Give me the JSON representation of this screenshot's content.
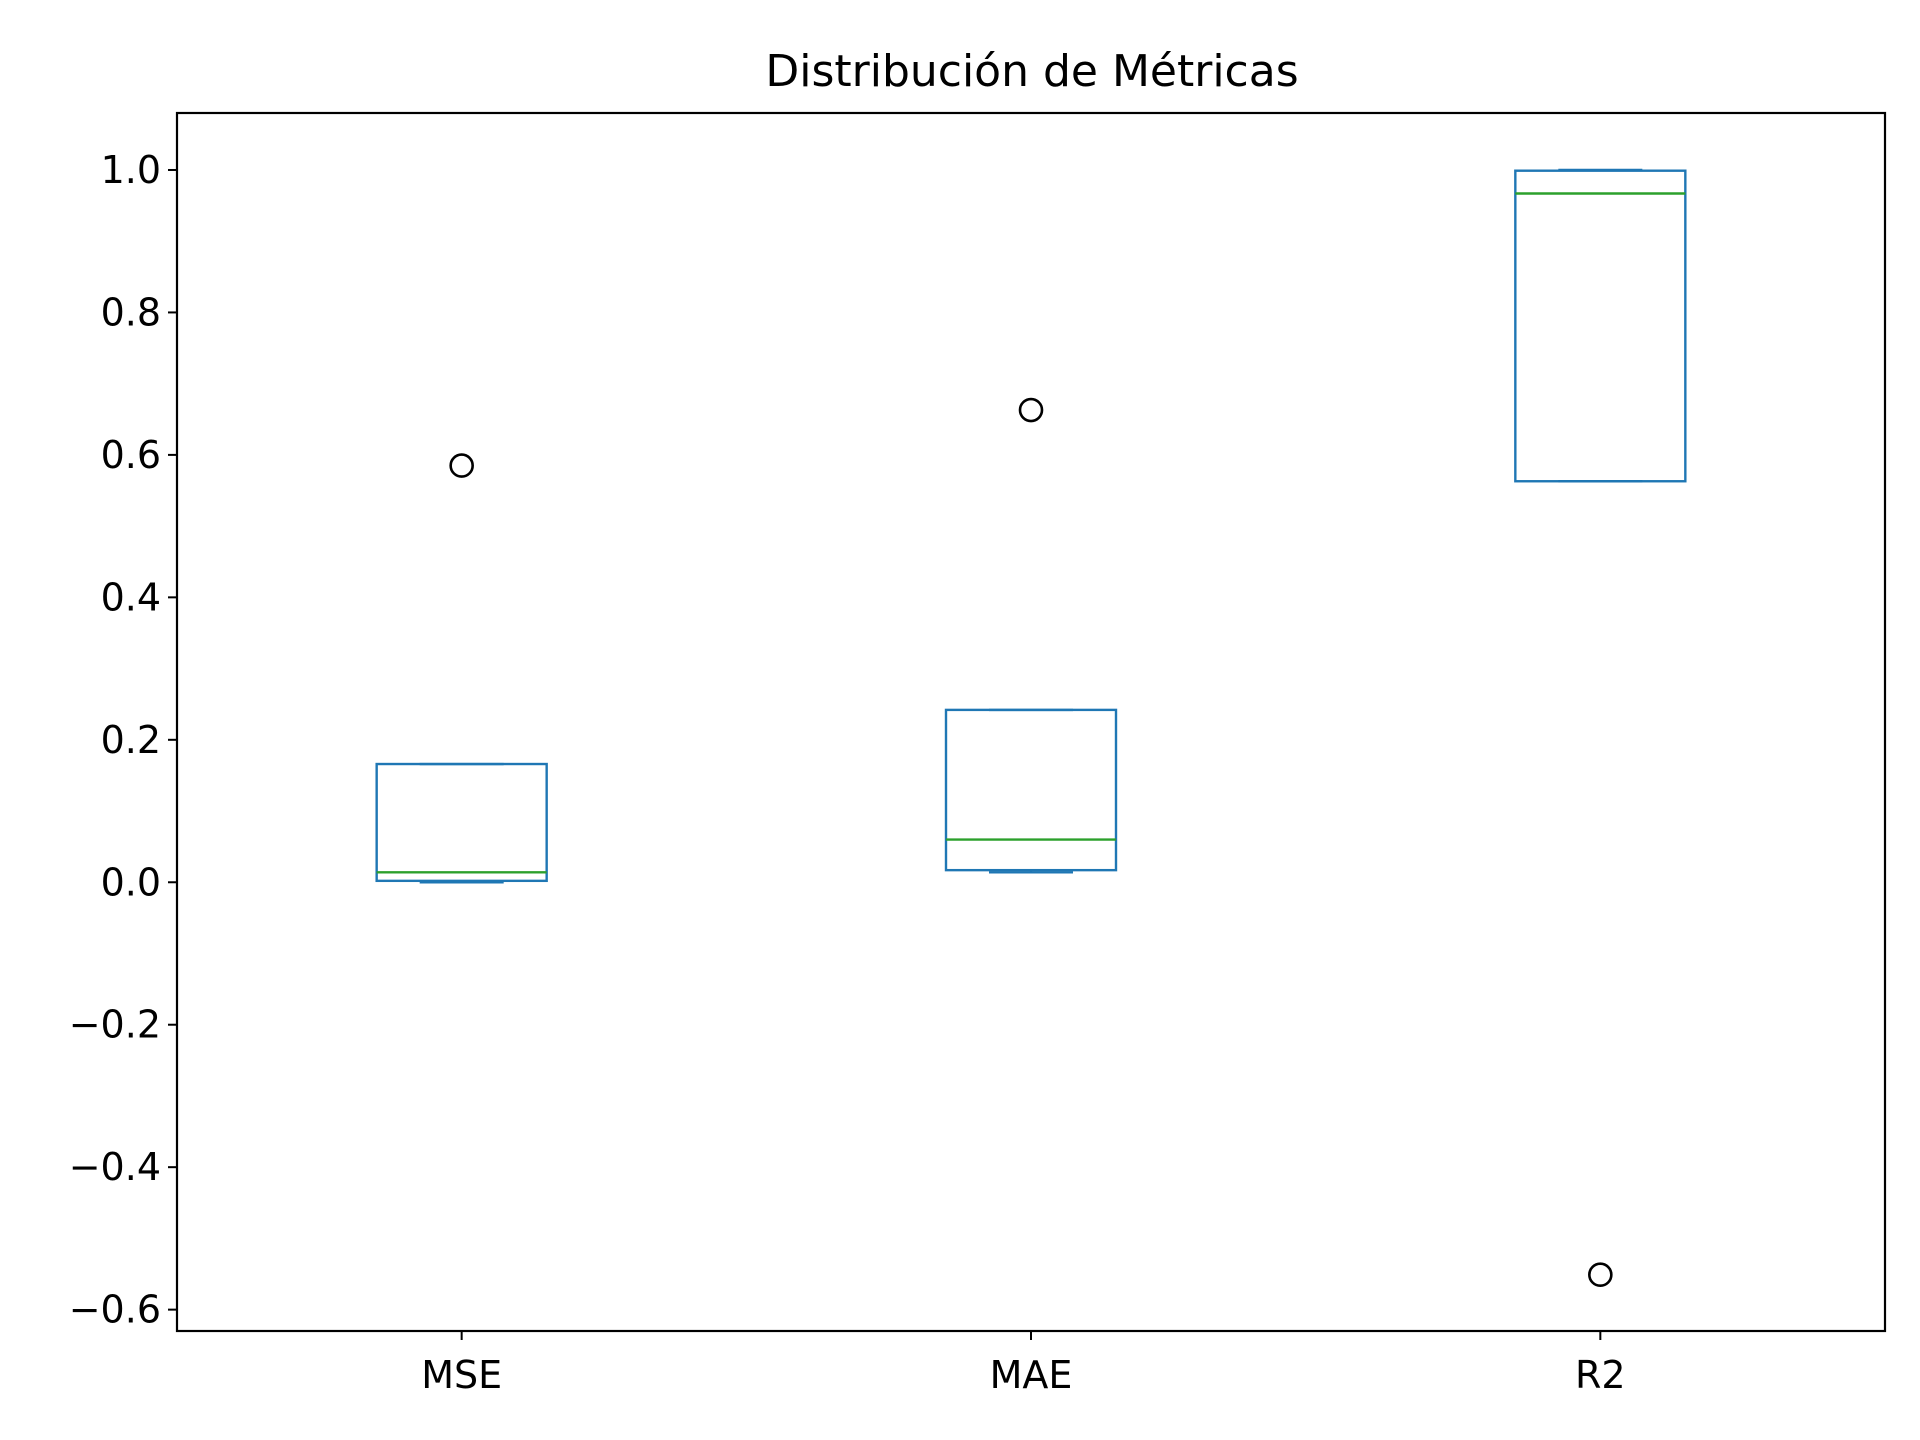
{
  "chart_data": {
    "type": "box",
    "title": "Distribución de Métricas",
    "xlabel": "",
    "ylabel": "",
    "categories": [
      "MSE",
      "MAE",
      "R2"
    ],
    "ylim": [
      -0.63,
      1.08
    ],
    "yticks": [
      -0.6,
      -0.4,
      -0.2,
      0.0,
      0.2,
      0.4,
      0.6,
      0.8,
      1.0
    ],
    "ytick_labels": [
      "−0.6",
      "−0.4",
      "−0.2",
      "0.0",
      "0.2",
      "0.4",
      "0.6",
      "0.8",
      "1.0"
    ],
    "grid": false,
    "legend": "none",
    "boxes": [
      {
        "category": "MSE",
        "whisker_low": 0.0,
        "q1": 0.002,
        "median": 0.014,
        "q3": 0.166,
        "whisker_high": 0.166,
        "outliers": [
          0.585
        ]
      },
      {
        "category": "MAE",
        "whisker_low": 0.014,
        "q1": 0.017,
        "median": 0.06,
        "q3": 0.242,
        "whisker_high": 0.242,
        "outliers": [
          0.663
        ]
      },
      {
        "category": "R2",
        "whisker_low": 0.563,
        "q1": 0.563,
        "median": 0.967,
        "q3": 0.999,
        "whisker_high": 1.0,
        "outliers": [
          -0.551
        ]
      }
    ],
    "colors": {
      "box": "#1f77b4",
      "median": "#2ca02c",
      "outlier": "#000000",
      "axes": "#000000"
    }
  }
}
